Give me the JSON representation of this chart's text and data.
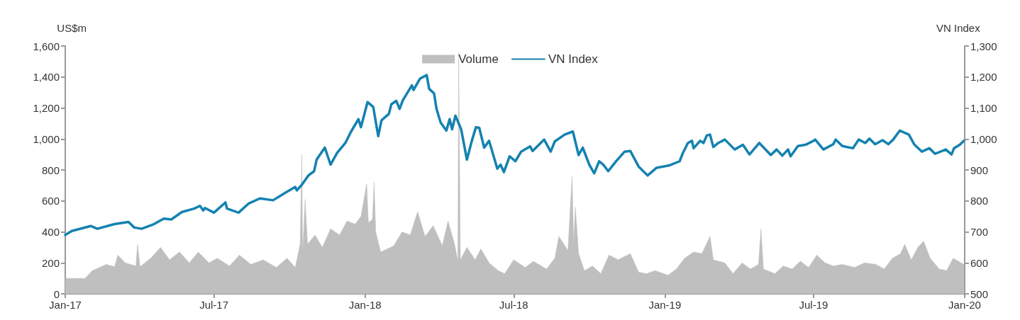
{
  "chart_data": {
    "type": "line",
    "ylabel": "US$m",
    "y2label": "VN Index",
    "legend": "top",
    "grid": false,
    "marker": "none",
    "xlim": [
      "2017-01-01",
      "2020-01-01"
    ],
    "xticks": [
      {
        "value": "2017-01-01",
        "label": "Jan-17"
      },
      {
        "value": "2017-07-01",
        "label": "Jul-17"
      },
      {
        "value": "2018-01-01",
        "label": "Jan-18"
      },
      {
        "value": "2018-07-01",
        "label": "Jul-18"
      },
      {
        "value": "2019-01-01",
        "label": "Jan-19"
      },
      {
        "value": "2019-07-01",
        "label": "Jul-19"
      },
      {
        "value": "2020-01-01",
        "label": "Jan-20"
      }
    ],
    "ylim": [
      0,
      1600
    ],
    "yticks": [
      0,
      200,
      400,
      600,
      800,
      {
        "value": 1000,
        "label": "1,000"
      },
      {
        "value": 1200,
        "label": "1,200"
      },
      {
        "value": 1400,
        "label": "1,400"
      },
      {
        "value": 1600,
        "label": "1,600"
      }
    ],
    "y2lim": [
      500,
      1300
    ],
    "y2ticks": [
      500,
      600,
      700,
      800,
      900,
      {
        "value": 1000,
        "label": "1,000"
      },
      {
        "value": 1100,
        "label": "1,100"
      },
      {
        "value": 1200,
        "label": "1,200"
      },
      {
        "value": 1300,
        "label": "1,300"
      }
    ],
    "series": [
      {
        "name": "Volume",
        "type": "area",
        "color": "#bfbfbf",
        "x": [
          "2017-01-01",
          "2017-01-25",
          "2017-02-03",
          "2017-02-20",
          "2017-03-02",
          "2017-03-06",
          "2017-03-15",
          "2017-03-28",
          "2017-03-30",
          "2017-04-02",
          "2017-04-15",
          "2017-04-27",
          "2017-05-08",
          "2017-05-20",
          "2017-06-01",
          "2017-06-12",
          "2017-06-25",
          "2017-07-05",
          "2017-07-20",
          "2017-08-01",
          "2017-08-15",
          "2017-08-30",
          "2017-09-15",
          "2017-09-28",
          "2017-10-08",
          "2017-10-14",
          "2017-10-16",
          "2017-10-17",
          "2017-10-20",
          "2017-10-23",
          "2017-11-01",
          "2017-11-10",
          "2017-11-20",
          "2017-12-01",
          "2017-12-10",
          "2017-12-20",
          "2017-12-27",
          "2018-01-03",
          "2018-01-05",
          "2018-01-10",
          "2018-01-12",
          "2018-01-14",
          "2018-01-20",
          "2018-02-05",
          "2018-02-15",
          "2018-02-25",
          "2018-03-06",
          "2018-03-15",
          "2018-03-25",
          "2018-04-05",
          "2018-04-12",
          "2018-04-20",
          "2018-04-24",
          "2018-04-25",
          "2018-04-27",
          "2018-05-05",
          "2018-05-15",
          "2018-05-22",
          "2018-06-01",
          "2018-06-12",
          "2018-06-20",
          "2018-07-01",
          "2018-07-15",
          "2018-07-25",
          "2018-08-10",
          "2018-08-20",
          "2018-08-25",
          "2018-09-05",
          "2018-09-10",
          "2018-09-12",
          "2018-09-14",
          "2018-09-18",
          "2018-09-25",
          "2018-10-05",
          "2018-10-15",
          "2018-10-25",
          "2018-11-05",
          "2018-11-20",
          "2018-11-30",
          "2018-12-10",
          "2018-12-20",
          "2019-01-05",
          "2019-01-15",
          "2019-01-25",
          "2019-02-05",
          "2019-02-15",
          "2019-02-25",
          "2019-03-01",
          "2019-03-15",
          "2019-03-25",
          "2019-04-05",
          "2019-04-15",
          "2019-04-25",
          "2019-04-28",
          "2019-05-01",
          "2019-05-15",
          "2019-05-25",
          "2019-06-05",
          "2019-06-15",
          "2019-06-25",
          "2019-07-05",
          "2019-07-15",
          "2019-07-25",
          "2019-08-05",
          "2019-08-20",
          "2019-09-01",
          "2019-09-15",
          "2019-09-25",
          "2019-10-05",
          "2019-10-15",
          "2019-10-20",
          "2019-10-28",
          "2019-11-05",
          "2019-11-12",
          "2019-11-20",
          "2019-12-01",
          "2019-12-10",
          "2019-12-18",
          "2019-12-31"
        ],
        "values": [
          100,
          100,
          150,
          190,
          175,
          250,
          200,
          180,
          320,
          175,
          230,
          300,
          220,
          270,
          200,
          270,
          200,
          230,
          180,
          250,
          190,
          220,
          170,
          230,
          170,
          320,
          900,
          260,
          610,
          320,
          380,
          300,
          420,
          380,
          470,
          450,
          500,
          710,
          460,
          480,
          720,
          400,
          270,
          310,
          400,
          380,
          530,
          370,
          440,
          310,
          470,
          320,
          210,
          1560,
          220,
          300,
          220,
          290,
          200,
          150,
          130,
          220,
          170,
          210,
          160,
          230,
          370,
          280,
          760,
          330,
          560,
          260,
          150,
          180,
          130,
          250,
          220,
          260,
          140,
          130,
          150,
          120,
          160,
          230,
          270,
          260,
          370,
          220,
          200,
          130,
          200,
          160,
          190,
          420,
          160,
          130,
          180,
          160,
          210,
          170,
          250,
          200,
          180,
          190,
          170,
          200,
          190,
          160,
          230,
          260,
          320,
          220,
          300,
          340,
          230,
          160,
          150,
          230,
          190
        ]
      },
      {
        "name": "VN Index",
        "axis": "y2",
        "color": "#1482b0",
        "x": [
          "2017-01-01",
          "2017-01-09",
          "2017-02-01",
          "2017-02-09",
          "2017-03-02",
          "2017-03-19",
          "2017-03-26",
          "2017-04-04",
          "2017-04-19",
          "2017-05-01",
          "2017-05-10",
          "2017-05-23",
          "2017-06-07",
          "2017-06-14",
          "2017-06-18",
          "2017-06-20",
          "2017-07-01",
          "2017-07-15",
          "2017-07-17",
          "2017-07-31",
          "2017-08-12",
          "2017-08-26",
          "2017-09-11",
          "2017-09-27",
          "2017-10-08",
          "2017-10-10",
          "2017-10-16",
          "2017-10-24",
          "2017-10-31",
          "2017-11-03",
          "2017-11-13",
          "2017-11-20",
          "2017-11-28",
          "2017-12-08",
          "2017-12-15",
          "2017-12-24",
          "2017-12-27",
          "2018-01-04",
          "2018-01-11",
          "2018-01-17",
          "2018-01-21",
          "2018-01-30",
          "2018-02-02",
          "2018-02-08",
          "2018-02-12",
          "2018-02-16",
          "2018-02-27",
          "2018-03-01",
          "2018-03-09",
          "2018-03-17",
          "2018-03-20",
          "2018-03-26",
          "2018-03-29",
          "2018-04-03",
          "2018-04-10",
          "2018-04-14",
          "2018-04-17",
          "2018-04-21",
          "2018-04-28",
          "2018-05-05",
          "2018-05-11",
          "2018-05-16",
          "2018-05-20",
          "2018-05-26",
          "2018-06-01",
          "2018-06-11",
          "2018-06-15",
          "2018-06-19",
          "2018-06-26",
          "2018-07-03",
          "2018-07-10",
          "2018-07-21",
          "2018-07-24",
          "2018-08-07",
          "2018-08-15",
          "2018-08-20",
          "2018-09-01",
          "2018-09-11",
          "2018-09-18",
          "2018-09-23",
          "2018-10-01",
          "2018-10-07",
          "2018-10-13",
          "2018-10-18",
          "2018-10-24",
          "2018-11-02",
          "2018-11-13",
          "2018-11-20",
          "2018-11-30",
          "2018-12-11",
          "2018-12-22",
          "2019-01-07",
          "2019-01-19",
          "2019-01-23",
          "2019-01-29",
          "2019-02-03",
          "2019-02-05",
          "2019-02-13",
          "2019-02-17",
          "2019-02-21",
          "2019-02-25",
          "2019-03-01",
          "2019-03-07",
          "2019-03-15",
          "2019-03-27",
          "2019-04-06",
          "2019-04-14",
          "2019-04-26",
          "2019-05-10",
          "2019-05-17",
          "2019-05-24",
          "2019-05-31",
          "2019-06-03",
          "2019-06-12",
          "2019-06-21",
          "2019-07-01",
          "2019-07-03",
          "2019-07-13",
          "2019-07-25",
          "2019-07-28",
          "2019-08-05",
          "2019-08-18",
          "2019-08-25",
          "2019-09-02",
          "2019-09-07",
          "2019-09-14",
          "2019-09-23",
          "2019-09-30",
          "2019-10-06",
          "2019-10-14",
          "2019-10-25",
          "2019-11-01",
          "2019-11-10",
          "2019-11-19",
          "2019-11-26",
          "2019-12-09",
          "2019-12-16",
          "2019-12-19",
          "2019-12-26",
          "2019-12-31"
        ],
        "values": [
          690,
          703,
          719,
          710,
          725,
          732,
          714,
          710,
          725,
          743,
          740,
          764,
          775,
          784,
          769,
          777,
          762,
          795,
          775,
          762,
          791,
          808,
          802,
          828,
          845,
          834,
          852,
          882,
          896,
          933,
          972,
          917,
          955,
          987,
          1024,
          1064,
          1038,
          1119,
          1103,
          1009,
          1060,
          1081,
          1112,
          1123,
          1097,
          1125,
          1173,
          1158,
          1195,
          1206,
          1162,
          1147,
          1097,
          1053,
          1027,
          1064,
          1031,
          1075,
          1031,
          933,
          994,
          1038,
          1036,
          972,
          994,
          904,
          917,
          893,
          944,
          928,
          959,
          976,
          961,
          998,
          959,
          992,
          1014,
          1024,
          948,
          972,
          917,
          889,
          928,
          917,
          896,
          926,
          959,
          961,
          911,
          882,
          907,
          915,
          928,
          955,
          987,
          994,
          970,
          994,
          987,
          1011,
          1014,
          974,
          987,
          998,
          966,
          981,
          950,
          987,
          948,
          966,
          946,
          966,
          944,
          977,
          981,
          994,
          998,
          966,
          983,
          998,
          977,
          970,
          998,
          987,
          1001,
          983,
          996,
          983,
          998,
          1027,
          1014,
          981,
          959,
          970,
          952,
          966,
          950,
          970,
          981,
          994
        ]
      }
    ]
  }
}
